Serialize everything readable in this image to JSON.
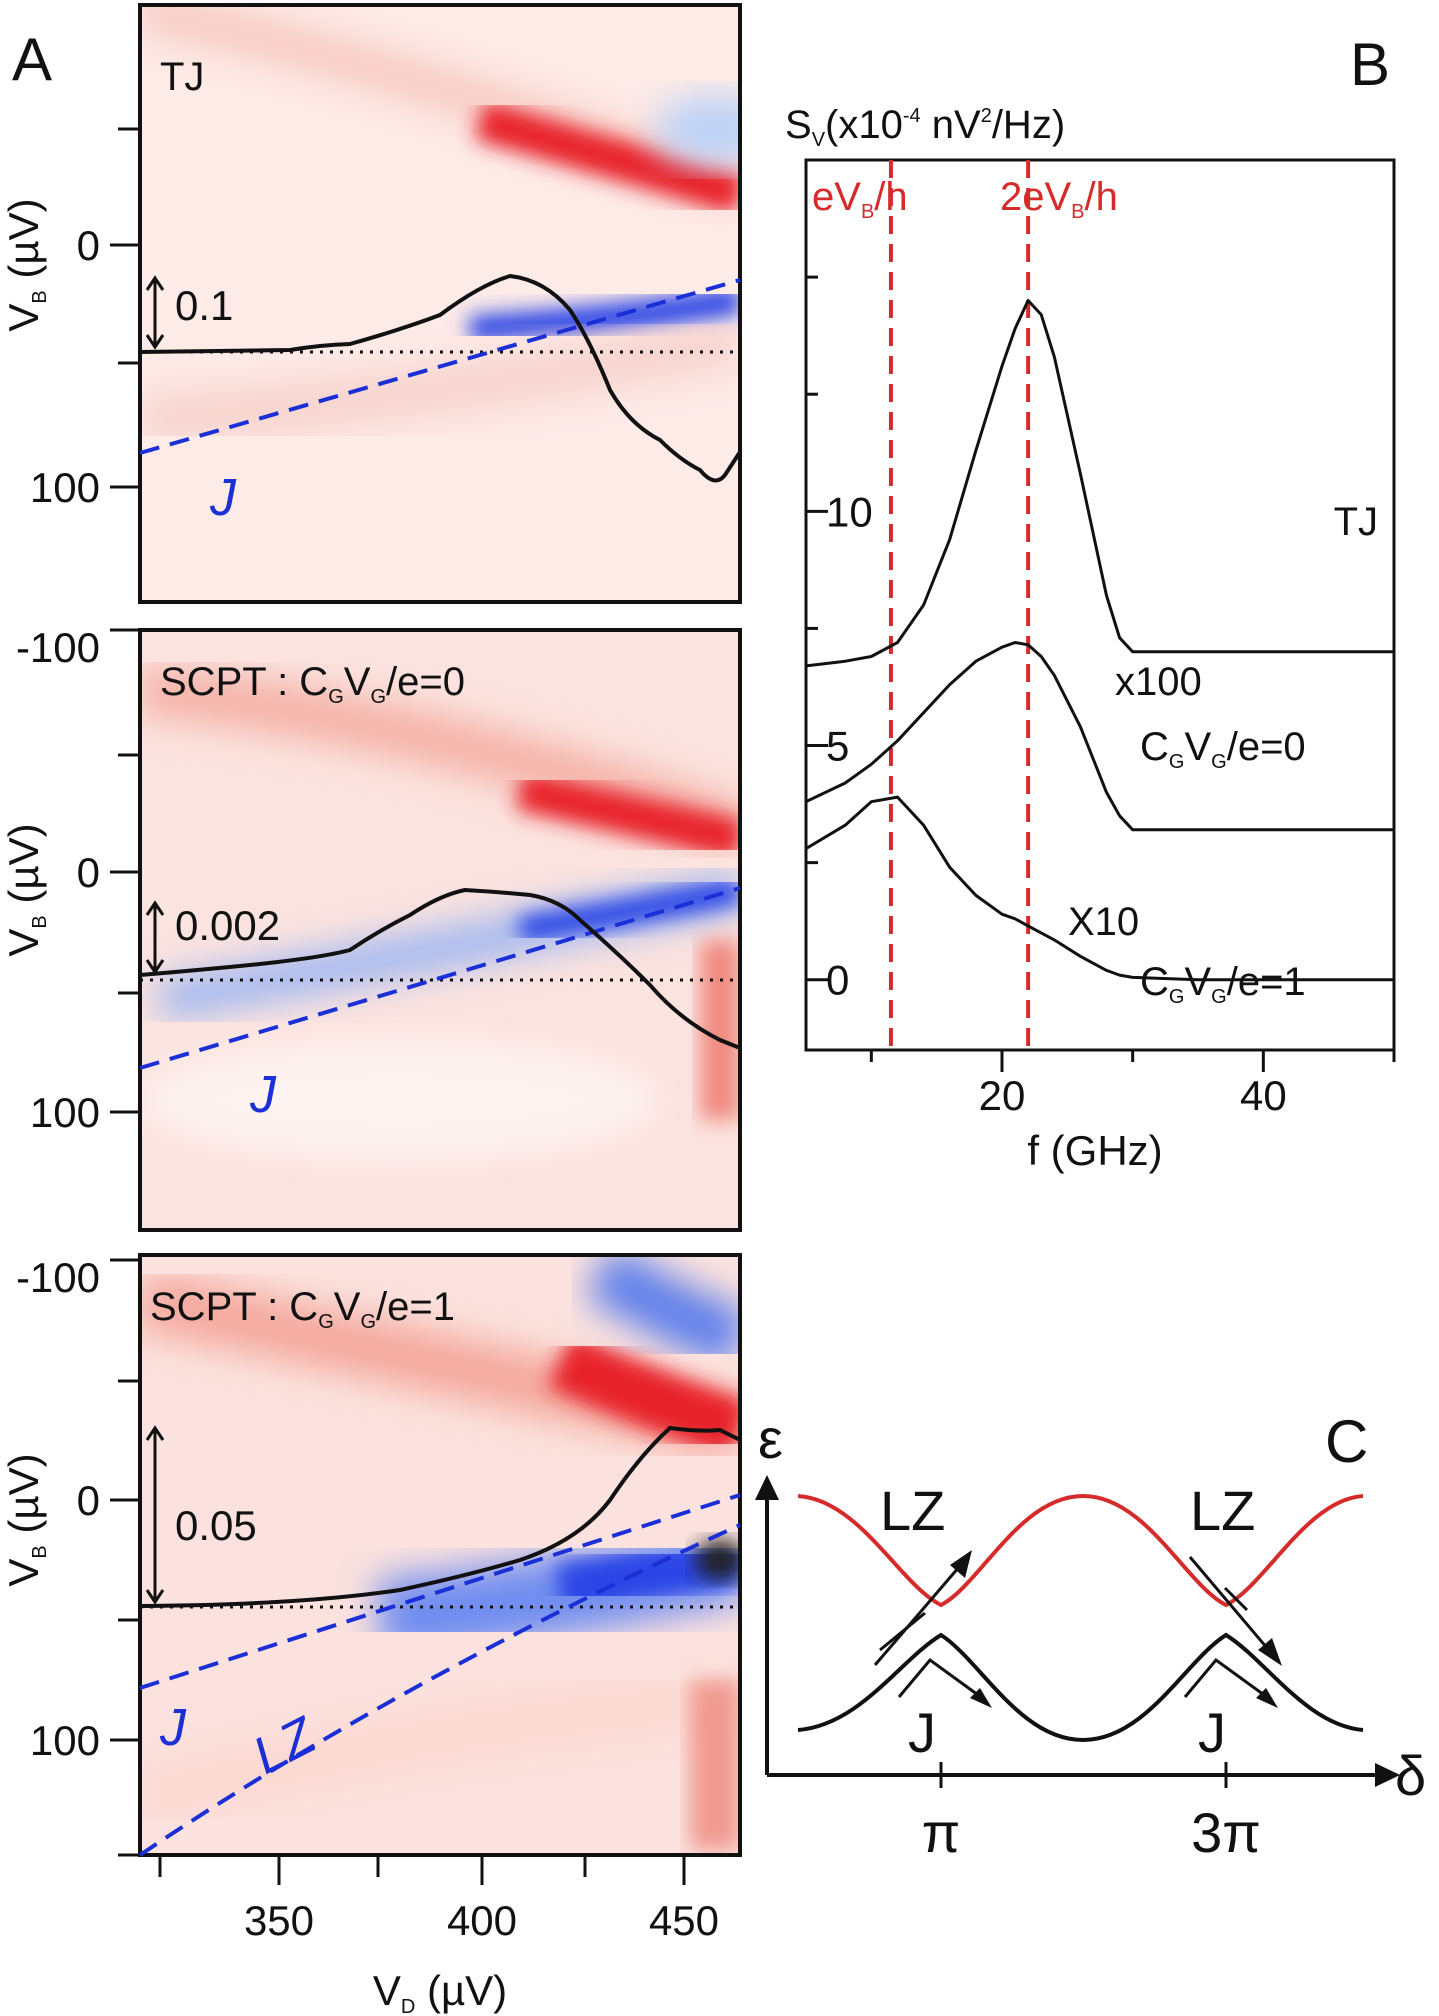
{
  "panels": {
    "A": {
      "letter": "A",
      "subpanels": [
        {
          "title": "TJ",
          "scale_bar": "0.1",
          "fit_labels": [
            "J"
          ]
        },
        {
          "title_prefix": "SCPT : C",
          "title_sub1": "G",
          "title_mid": "V",
          "title_sub2": "G",
          "title_suffix": "/e=0",
          "scale_bar": "0.002",
          "fit_labels": [
            "J"
          ]
        },
        {
          "title_prefix": "SCPT : C",
          "title_sub1": "G",
          "title_mid": "V",
          "title_sub2": "G",
          "title_suffix": "/e=1",
          "scale_bar": "0.05",
          "fit_labels": [
            "J",
            "LZ"
          ]
        }
      ],
      "y_axis": {
        "label_main": "V",
        "label_sub": "B",
        "label_unit": " (µV)",
        "tick_labels_top": [
          "0",
          "100"
        ],
        "tick_labels_lower": [
          "-100",
          "0",
          "100"
        ]
      },
      "x_axis": {
        "label_main": "V",
        "label_sub": "D",
        "label_unit": " (µV)",
        "tick_labels": [
          "350",
          "400",
          "450"
        ]
      }
    },
    "B": {
      "letter": "B",
      "y_label_main": "S",
      "y_label_sub": "V",
      "y_label_mid": "(x10",
      "y_label_exp": "-4",
      "y_label_mid2": " nV",
      "y_label_exp2": "2",
      "y_label_end": "/Hz)",
      "y_ticks": [
        "10",
        "5",
        "0"
      ],
      "x_ticks": [
        "20",
        "40"
      ],
      "x_label": "f (GHz)",
      "markers": [
        {
          "main": "eV",
          "sub": "B",
          "end": "/h"
        },
        {
          "main": "2eV",
          "sub": "B",
          "end": "/h"
        }
      ],
      "curve_labels": {
        "tj": "TJ",
        "x100": "x100",
        "cg0_prefix": "C",
        "cg0_sub1": "G",
        "cg0_mid": "V",
        "cg0_sub2": "G",
        "cg0_suffix": "/e=0",
        "x10": "X10",
        "cg1_prefix": "C",
        "cg1_sub1": "G",
        "cg1_mid": "V",
        "cg1_sub2": "G",
        "cg1_suffix": "/e=1"
      }
    },
    "C": {
      "letter": "C",
      "y_label": "ε",
      "x_label": "δ",
      "x_ticks": [
        "π",
        "3π"
      ],
      "labels": [
        "LZ",
        "LZ",
        "J",
        "J"
      ]
    }
  },
  "colors": {
    "red_marker": "#d62b2b",
    "blue_fit": "#1b2fd6",
    "heat_red": "#e8202a",
    "heat_blue": "#2a45e6"
  },
  "chart_data": [
    {
      "type": "line",
      "panel": "B",
      "x": [
        5,
        8,
        10,
        12,
        14,
        16,
        18,
        20,
        21,
        22,
        23,
        24,
        26,
        28,
        29,
        30,
        35,
        40,
        45,
        50
      ],
      "series": [
        {
          "name": "TJ",
          "values": [
            6.7,
            6.8,
            6.9,
            7.2,
            8.0,
            9.4,
            11.3,
            13.1,
            13.9,
            14.5,
            14.2,
            13.3,
            10.8,
            8.2,
            7.3,
            7.0,
            7.0,
            7.0,
            7.0,
            7.0
          ]
        },
        {
          "name": "x100 CGVG/e=0",
          "values": [
            3.8,
            4.2,
            4.6,
            5.1,
            5.7,
            6.3,
            6.8,
            7.1,
            7.2,
            7.15,
            6.9,
            6.5,
            5.4,
            4.0,
            3.5,
            3.2,
            3.2,
            3.2,
            3.2,
            3.2
          ]
        },
        {
          "name": "X10 CGVG/e=1",
          "values": [
            2.8,
            3.3,
            3.8,
            3.9,
            3.3,
            2.4,
            1.8,
            1.4,
            1.3,
            1.15,
            1.0,
            0.85,
            0.5,
            0.2,
            0.1,
            0.05,
            0.0,
            0.0,
            0.0,
            0.0
          ]
        }
      ],
      "markers_x": [
        11.5,
        22
      ],
      "xlim": [
        5,
        50
      ],
      "ylim": [
        -1.5,
        17.5
      ]
    }
  ]
}
